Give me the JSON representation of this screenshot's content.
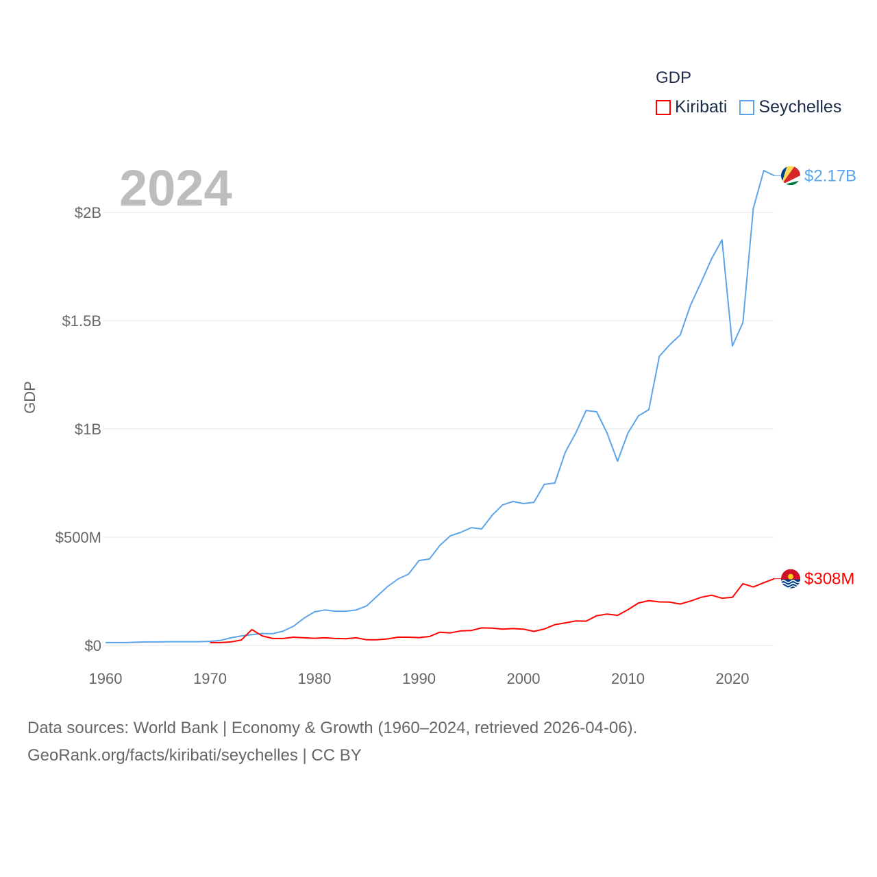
{
  "chart_data": {
    "type": "line",
    "title": "GDP",
    "year_label": "2024",
    "ylabel": "GDP",
    "xlabel": "",
    "xlim": [
      1960,
      2024
    ],
    "ylim": [
      0,
      2.2
    ],
    "y_unit": "billions USD",
    "x_ticks": [
      "1960",
      "1970",
      "1980",
      "1990",
      "2000",
      "2010",
      "2020"
    ],
    "y_ticks": [
      {
        "value": 0,
        "label": "$0"
      },
      {
        "value": 0.5,
        "label": "$500M"
      },
      {
        "value": 1,
        "label": "$1B"
      },
      {
        "value": 1.5,
        "label": "$1.5B"
      },
      {
        "value": 2,
        "label": "$2B"
      }
    ],
    "grid": true,
    "legend_placement": "top-right",
    "series": [
      {
        "name": "Kiribati",
        "color": "#ff0000",
        "end_label": "$308M",
        "start_year": 1970,
        "values": [
          0.013,
          0.013,
          0.016,
          0.025,
          0.073,
          0.044,
          0.032,
          0.032,
          0.038,
          0.035,
          0.033,
          0.035,
          0.032,
          0.031,
          0.035,
          0.026,
          0.026,
          0.03,
          0.038,
          0.038,
          0.036,
          0.041,
          0.061,
          0.058,
          0.067,
          0.069,
          0.081,
          0.08,
          0.075,
          0.078,
          0.075,
          0.065,
          0.076,
          0.096,
          0.104,
          0.113,
          0.112,
          0.137,
          0.145,
          0.139,
          0.165,
          0.196,
          0.207,
          0.201,
          0.2,
          0.191,
          0.205,
          0.222,
          0.232,
          0.218,
          0.222,
          0.285,
          0.27,
          0.29,
          0.308
        ]
      },
      {
        "name": "Seychelles",
        "color": "#5ba4ea",
        "end_label": "$2.17B",
        "start_year": 1960,
        "values": [
          0.013,
          0.013,
          0.013,
          0.015,
          0.016,
          0.016,
          0.017,
          0.017,
          0.017,
          0.017,
          0.019,
          0.023,
          0.035,
          0.044,
          0.05,
          0.055,
          0.054,
          0.066,
          0.089,
          0.126,
          0.155,
          0.164,
          0.158,
          0.158,
          0.164,
          0.183,
          0.228,
          0.272,
          0.307,
          0.329,
          0.392,
          0.399,
          0.462,
          0.506,
          0.522,
          0.544,
          0.538,
          0.601,
          0.649,
          0.665,
          0.655,
          0.661,
          0.744,
          0.75,
          0.892,
          0.981,
          1.085,
          1.079,
          0.981,
          0.851,
          0.981,
          1.06,
          1.089,
          1.335,
          1.389,
          1.434,
          1.573,
          1.677,
          1.785,
          1.873,
          1.383,
          1.491,
          2.019,
          2.193,
          2.17
        ]
      }
    ]
  },
  "footer": {
    "line1": "Data sources: World Bank | Economy & Growth (1960–2024, retrieved 2026-04-06).",
    "line2": "GeoRank.org/facts/kiribati/seychelles | CC BY"
  }
}
